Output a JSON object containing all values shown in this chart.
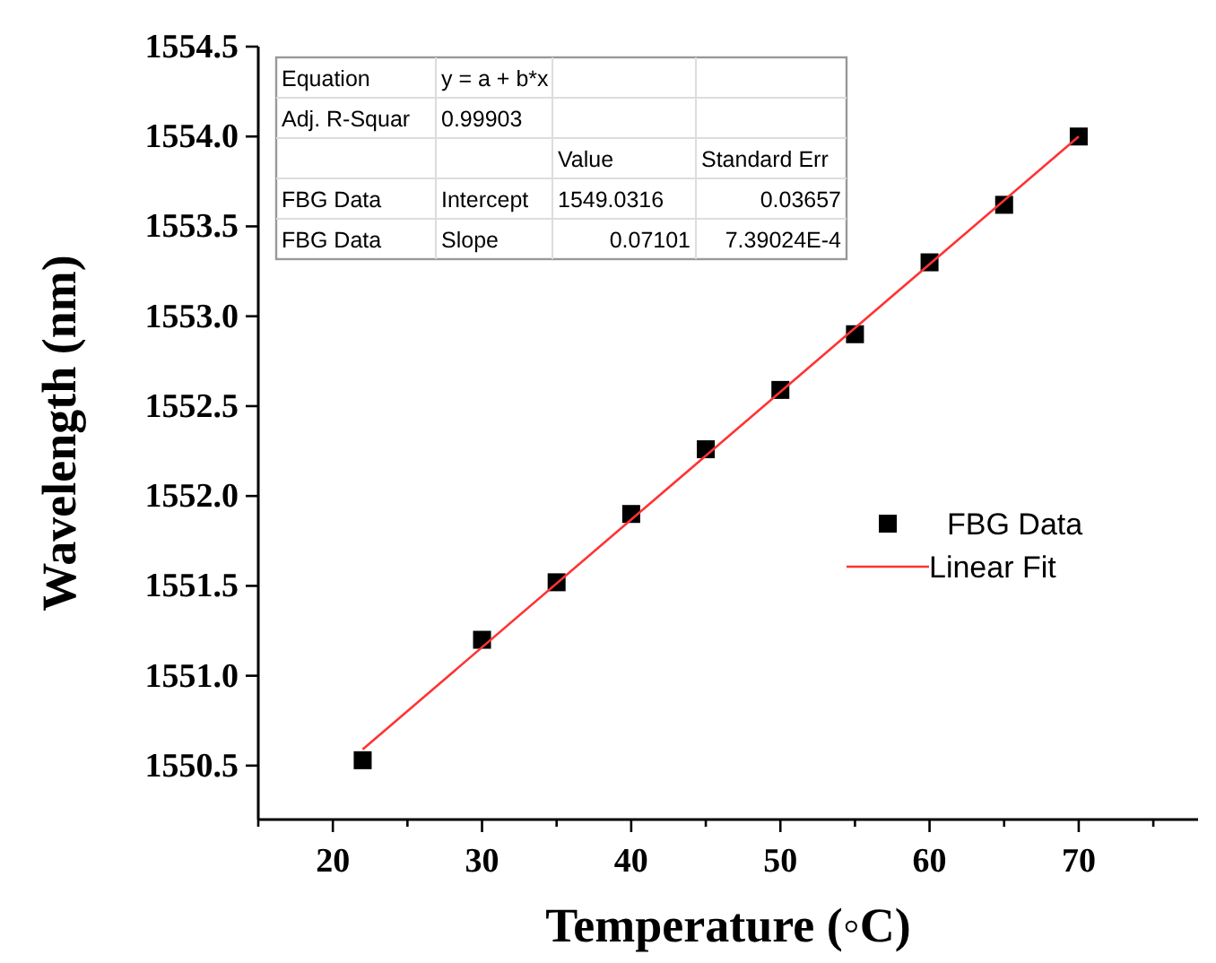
{
  "chart_data": {
    "type": "scatter",
    "xlabel": "Temperature (◦C)",
    "ylabel": "Wavelength (nm)",
    "xlim": [
      15,
      78
    ],
    "ylim": [
      1550.2,
      1554.5
    ],
    "xticks": [
      {
        "value": 15,
        "label": null
      },
      20,
      {
        "value": 25,
        "label": null
      },
      30,
      {
        "value": 35,
        "label": null
      },
      40,
      {
        "value": 45,
        "label": null
      },
      50,
      {
        "value": 55,
        "label": null
      },
      60,
      {
        "value": 65,
        "label": null
      },
      70,
      {
        "value": 75,
        "label": null
      }
    ],
    "yticks": [
      1550.5,
      {
        "value": 1551,
        "label": "1551.0"
      },
      1551.5,
      {
        "value": 1552,
        "label": "1552.0"
      },
      1552.5,
      {
        "value": 1553,
        "label": "1553.0"
      },
      1553.5,
      {
        "value": 1554,
        "label": "1554.0"
      },
      1554.5
    ],
    "x": [
      22,
      30,
      35,
      40,
      45,
      50,
      55,
      60,
      65,
      70
    ],
    "series": [
      {
        "name": "FBG Data",
        "color": "#000000",
        "marker": "square",
        "values": [
          1550.53,
          1551.2,
          1551.52,
          1551.9,
          1552.26,
          1552.59,
          1552.9,
          1553.3,
          1553.62,
          1554.0
        ]
      },
      {
        "name": "Linear Fit",
        "type": "line",
        "color": "#ff3333",
        "marker": "none",
        "x": [
          22,
          70
        ],
        "values": [
          1550.59,
          1554.0
        ]
      }
    ],
    "annotations": [
      "Equation",
      "y = a + b*x",
      "Adj. R-Squar",
      "0.99903",
      "Value",
      "Standard Err",
      "FBG Data",
      "Intercept",
      "1549.0316",
      "0.03657",
      "FBG Data",
      "Slope",
      "0.07101",
      "7.39024E-4"
    ],
    "legend": "right",
    "grid": false
  }
}
